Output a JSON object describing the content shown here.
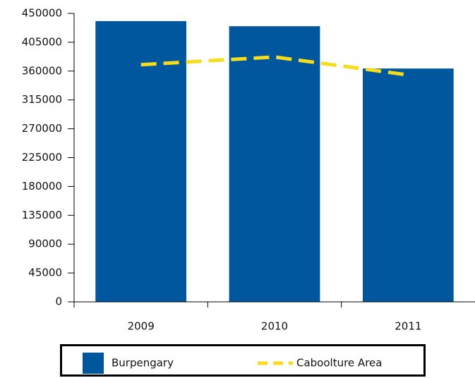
{
  "chart_data": {
    "type": "bar_line",
    "categories": [
      "2009",
      "2010",
      "2011"
    ],
    "series": [
      {
        "name": "Burpengary",
        "type": "bar",
        "color": "#00579e",
        "values": [
          438000,
          430000,
          364000
        ]
      },
      {
        "name": "Caboolture Area",
        "type": "line",
        "color": "#f7dc1e",
        "values": [
          370000,
          382000,
          354000
        ]
      }
    ],
    "ylim": [
      0,
      450000
    ],
    "yticks": [
      0,
      45000,
      90000,
      135000,
      180000,
      225000,
      270000,
      315000,
      360000,
      405000,
      450000
    ],
    "legend": "bottom"
  }
}
